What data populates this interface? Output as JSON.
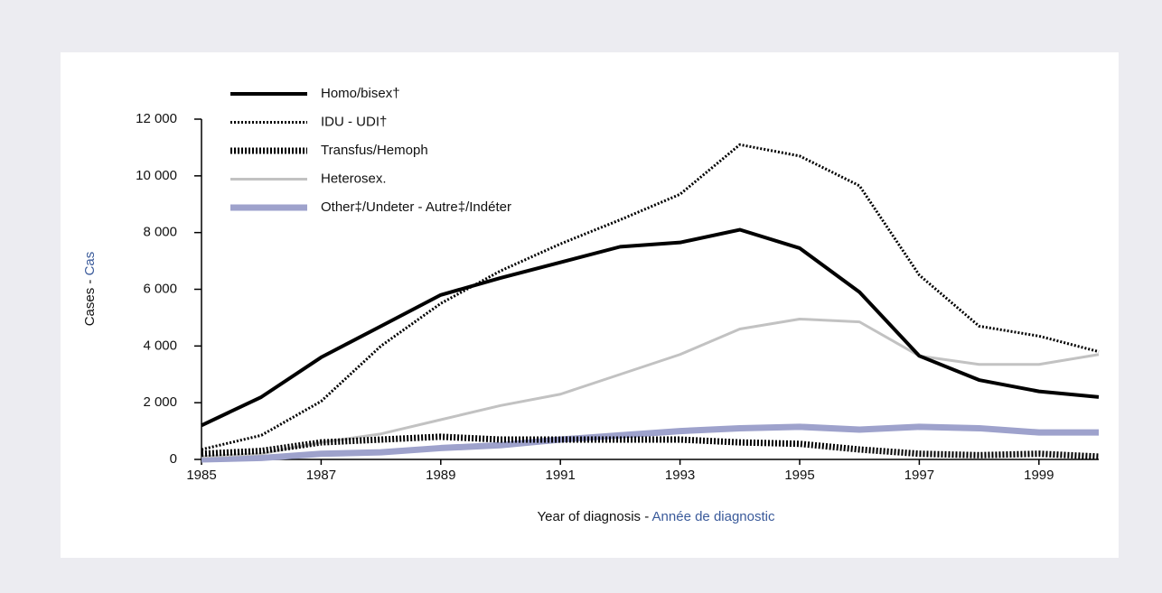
{
  "chart_data": {
    "type": "line",
    "xlabel": [
      "Year of diagnosis - ",
      "Année de diagnostic"
    ],
    "ylabel": [
      "Cases - ",
      "Cas"
    ],
    "x": [
      1985,
      1986,
      1987,
      1988,
      1989,
      1990,
      1991,
      1992,
      1993,
      1994,
      1995,
      1996,
      1997,
      1998,
      1999,
      2000
    ],
    "xlim": [
      1985,
      2000
    ],
    "xticks": [
      1985,
      1987,
      1989,
      1991,
      1993,
      1995,
      1997,
      1999
    ],
    "ylim": [
      0,
      12000
    ],
    "yticks": [
      0,
      {
        "value": 2000,
        "label": "2 000"
      },
      {
        "value": 4000,
        "label": "4 000"
      },
      {
        "value": 6000,
        "label": "6 000"
      },
      {
        "value": 8000,
        "label": "8 000"
      },
      {
        "value": 10000,
        "label": "10 000"
      },
      {
        "value": 12000,
        "label": "12 000"
      }
    ],
    "series": [
      {
        "name": "Homo/bisex†",
        "color": "#000000",
        "values": [
          1200,
          2200,
          3600,
          4700,
          5800,
          6400,
          6950,
          7500,
          7650,
          8100,
          7450,
          5900,
          3650,
          2800,
          2400,
          2200
        ]
      },
      {
        "name": "IDU - UDI†",
        "color": "#000000",
        "values": [
          350,
          850,
          2050,
          4000,
          5500,
          6650,
          7600,
          8450,
          9350,
          11100,
          10700,
          9650,
          6500,
          4700,
          4350,
          3800
        ]
      },
      {
        "name": "Transfus/Hemoph",
        "color": "#000000",
        "values": [
          200,
          300,
          600,
          700,
          800,
          700,
          700,
          700,
          700,
          600,
          550,
          350,
          200,
          150,
          200,
          100
        ]
      },
      {
        "name": "Heterosex.",
        "color": "#c2c2c2",
        "values": [
          100,
          200,
          600,
          900,
          1400,
          1900,
          2300,
          3000,
          3700,
          4600,
          4950,
          4850,
          3650,
          3350,
          3350,
          3700
        ]
      },
      {
        "name": "Other‡/Undeter - Autre‡/Indéter",
        "color": "#9ea2cc",
        "values": [
          0,
          50,
          200,
          250,
          400,
          500,
          700,
          850,
          1000,
          1100,
          1150,
          1050,
          1150,
          1100,
          950,
          950
        ]
      }
    ]
  }
}
